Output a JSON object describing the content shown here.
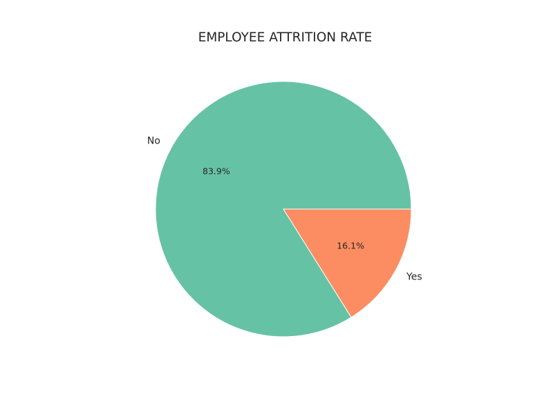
{
  "chart_data": {
    "type": "pie",
    "title": "EMPLOYEE ATTRITION RATE",
    "categories": [
      "No",
      "Yes"
    ],
    "values": [
      83.9,
      16.1
    ],
    "percent_labels": [
      "83.9%",
      "16.1%"
    ],
    "colors": [
      "#66c2a5",
      "#fc8d62"
    ],
    "start_angle_deg": 0,
    "direction": "counterclockwise",
    "legend": "none"
  }
}
